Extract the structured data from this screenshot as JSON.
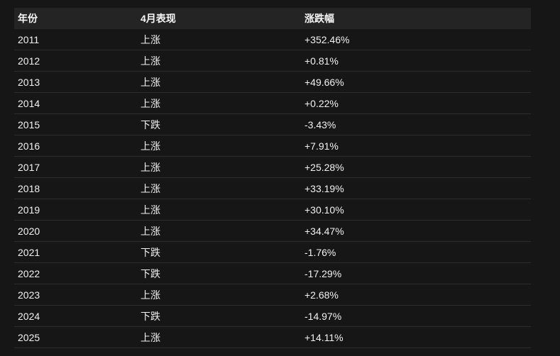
{
  "chart_data": {
    "type": "table",
    "columns": [
      {
        "id": "year",
        "label": "年份"
      },
      {
        "id": "performance",
        "label": "4月表现"
      },
      {
        "id": "change",
        "label": "涨跌幅"
      }
    ],
    "rows": [
      {
        "year": "2011",
        "performance": "上涨",
        "change": "+352.46%"
      },
      {
        "year": "2012",
        "performance": "上涨",
        "change": "+0.81%"
      },
      {
        "year": "2013",
        "performance": "上涨",
        "change": "+49.66%"
      },
      {
        "year": "2014",
        "performance": "上涨",
        "change": "+0.22%"
      },
      {
        "year": "2015",
        "performance": "下跌",
        "change": "-3.43%"
      },
      {
        "year": "2016",
        "performance": "上涨",
        "change": "+7.91%"
      },
      {
        "year": "2017",
        "performance": "上涨",
        "change": "+25.28%"
      },
      {
        "year": "2018",
        "performance": "上涨",
        "change": "+33.19%"
      },
      {
        "year": "2019",
        "performance": "上涨",
        "change": "+30.10%"
      },
      {
        "year": "2020",
        "performance": "上涨",
        "change": "+34.47%"
      },
      {
        "year": "2021",
        "performance": "下跌",
        "change": "-1.76%"
      },
      {
        "year": "2022",
        "performance": "下跌",
        "change": "-17.29%"
      },
      {
        "year": "2023",
        "performance": "上涨",
        "change": "+2.68%"
      },
      {
        "year": "2024",
        "performance": "下跌",
        "change": "-14.97%"
      },
      {
        "year": "2025",
        "performance": "上涨",
        "change": "+14.11%"
      }
    ]
  },
  "colors": {
    "page_background": "#161616",
    "header_background": "#242424",
    "divider": "#2c2c2c",
    "text": "#f2f2f2"
  }
}
